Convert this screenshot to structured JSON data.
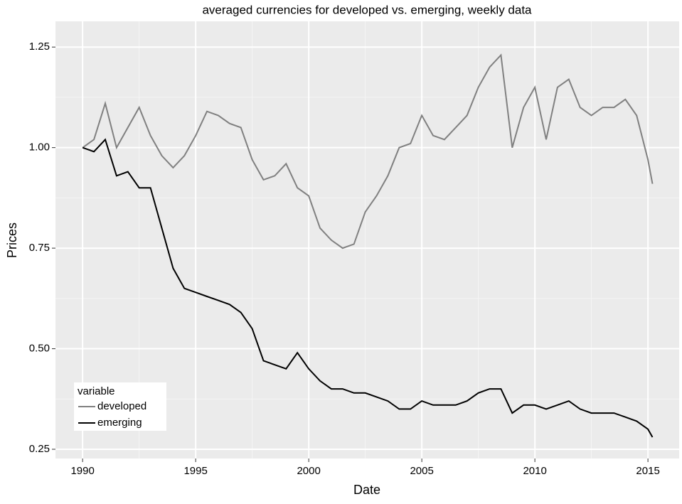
{
  "chart_data": {
    "type": "line",
    "title": "averaged currencies for developed vs. emerging, weekly data",
    "x_label": "Date",
    "y_label": "Prices",
    "x": [
      1990,
      1990.5,
      1991,
      1991.5,
      1992,
      1992.5,
      1993,
      1993.5,
      1994,
      1994.5,
      1995,
      1995.5,
      1996,
      1996.5,
      1997,
      1997.5,
      1998,
      1998.5,
      1999,
      1999.5,
      2000,
      2000.5,
      2001,
      2001.5,
      2002,
      2002.5,
      2003,
      2003.5,
      2004,
      2004.5,
      2005,
      2005.5,
      2006,
      2006.5,
      2007,
      2007.5,
      2008,
      2008.5,
      2009,
      2009.5,
      2010,
      2010.5,
      2011,
      2011.5,
      2012,
      2012.5,
      2013,
      2013.5,
      2014,
      2014.5,
      2015,
      2015.2
    ],
    "series": [
      {
        "name": "developed",
        "color": "#808080",
        "values": [
          1.0,
          1.02,
          1.11,
          1.0,
          1.05,
          1.1,
          1.03,
          0.98,
          0.95,
          0.98,
          1.03,
          1.09,
          1.08,
          1.06,
          1.05,
          0.97,
          0.92,
          0.93,
          0.96,
          0.9,
          0.88,
          0.8,
          0.77,
          0.75,
          0.76,
          0.84,
          0.88,
          0.93,
          1.0,
          1.01,
          1.08,
          1.03,
          1.02,
          1.05,
          1.08,
          1.15,
          1.2,
          1.23,
          1.0,
          1.1,
          1.15,
          1.02,
          1.15,
          1.17,
          1.1,
          1.08,
          1.1,
          1.1,
          1.12,
          1.08,
          0.97,
          0.91
        ]
      },
      {
        "name": "emerging",
        "color": "#000000",
        "values": [
          1.0,
          0.99,
          1.02,
          0.93,
          0.94,
          0.9,
          0.9,
          0.8,
          0.7,
          0.65,
          0.64,
          0.63,
          0.62,
          0.61,
          0.59,
          0.55,
          0.47,
          0.46,
          0.45,
          0.49,
          0.45,
          0.42,
          0.4,
          0.4,
          0.39,
          0.39,
          0.38,
          0.37,
          0.35,
          0.35,
          0.37,
          0.36,
          0.36,
          0.36,
          0.37,
          0.39,
          0.4,
          0.4,
          0.34,
          0.36,
          0.36,
          0.35,
          0.36,
          0.37,
          0.35,
          0.34,
          0.34,
          0.34,
          0.33,
          0.32,
          0.3,
          0.28
        ]
      }
    ],
    "legend_title": "variable",
    "legend_position": "bottom-left",
    "xlim": [
      1988.8,
      2016.38
    ],
    "xticks": [
      1990,
      1995,
      2000,
      2005,
      2010,
      2015
    ],
    "ylim": [
      0.227,
      1.314
    ],
    "yticks": [
      {
        "value": 0.25,
        "label": "0.25"
      },
      {
        "value": 0.5,
        "label": "0.50"
      },
      {
        "value": 0.75,
        "label": "0.75"
      },
      {
        "value": 1,
        "label": "1.00"
      },
      {
        "value": 1.25,
        "label": "1.25"
      }
    ],
    "grid": true
  }
}
